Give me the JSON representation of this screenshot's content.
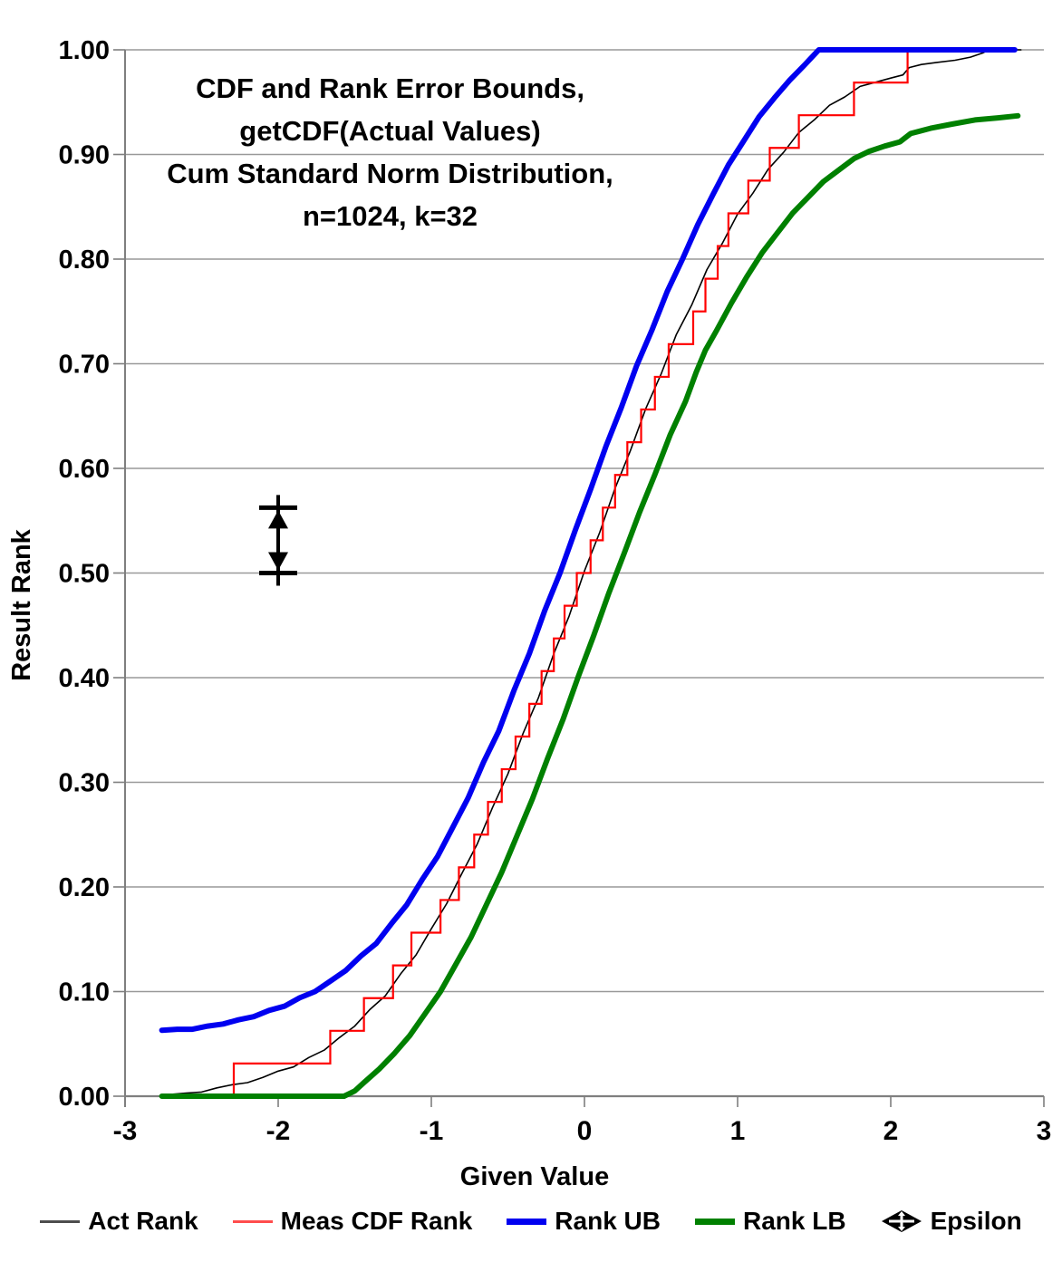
{
  "chart_data": {
    "type": "line",
    "title_lines": [
      "CDF and Rank Error Bounds,",
      "getCDF(Actual Values)",
      "Cum Standard Norm Distribution,",
      "n=1024, k=32"
    ],
    "xlabel": "Given Value",
    "ylabel": "Result Rank",
    "xlim": [
      -3,
      3
    ],
    "ylim": [
      0,
      1
    ],
    "grid": "horizontal",
    "legend_position": "bottom",
    "x_ticks": [
      {
        "v": -3,
        "label": "-3"
      },
      {
        "v": -2,
        "label": "-2"
      },
      {
        "v": -1,
        "label": "-1"
      },
      {
        "v": 0,
        "label": "0"
      },
      {
        "v": 1,
        "label": "1"
      },
      {
        "v": 2,
        "label": "2"
      },
      {
        "v": 3,
        "label": "3"
      }
    ],
    "y_ticks": [
      {
        "v": 0.0,
        "label": "0.00"
      },
      {
        "v": 0.1,
        "label": "0.10"
      },
      {
        "v": 0.2,
        "label": "0.20"
      },
      {
        "v": 0.3,
        "label": "0.30"
      },
      {
        "v": 0.4,
        "label": "0.40"
      },
      {
        "v": 0.5,
        "label": "0.50"
      },
      {
        "v": 0.6,
        "label": "0.60"
      },
      {
        "v": 0.7,
        "label": "0.70"
      },
      {
        "v": 0.8,
        "label": "0.80"
      },
      {
        "v": 0.9,
        "label": "0.90"
      },
      {
        "v": 1.0,
        "label": "1.00"
      }
    ],
    "series": [
      {
        "name": "Act Rank",
        "key": "act_rank",
        "type": "line",
        "color": "#000000",
        "width": 1.6,
        "points": [
          [
            -2.76,
            0.001
          ],
          [
            -2.6,
            0.003
          ],
          [
            -2.5,
            0.004
          ],
          [
            -2.4,
            0.008
          ],
          [
            -2.3,
            0.011
          ],
          [
            -2.2,
            0.013
          ],
          [
            -2.1,
            0.018
          ],
          [
            -2.0,
            0.024
          ],
          [
            -1.9,
            0.028
          ],
          [
            -1.8,
            0.037
          ],
          [
            -1.7,
            0.044
          ],
          [
            -1.6,
            0.056
          ],
          [
            -1.5,
            0.067
          ],
          [
            -1.4,
            0.083
          ],
          [
            -1.3,
            0.096
          ],
          [
            -1.2,
            0.117
          ],
          [
            -1.1,
            0.135
          ],
          [
            -1.0,
            0.16
          ],
          [
            -0.9,
            0.184
          ],
          [
            -0.8,
            0.213
          ],
          [
            -0.7,
            0.241
          ],
          [
            -0.6,
            0.276
          ],
          [
            -0.5,
            0.308
          ],
          [
            -0.4,
            0.347
          ],
          [
            -0.3,
            0.381
          ],
          [
            -0.2,
            0.423
          ],
          [
            -0.1,
            0.459
          ],
          [
            0.0,
            0.502
          ],
          [
            0.1,
            0.539
          ],
          [
            0.2,
            0.581
          ],
          [
            0.3,
            0.617
          ],
          [
            0.4,
            0.657
          ],
          [
            0.5,
            0.69
          ],
          [
            0.6,
            0.728
          ],
          [
            0.7,
            0.756
          ],
          [
            0.8,
            0.79
          ],
          [
            0.9,
            0.815
          ],
          [
            1.0,
            0.843
          ],
          [
            1.1,
            0.863
          ],
          [
            1.2,
            0.886
          ],
          [
            1.3,
            0.902
          ],
          [
            1.4,
            0.921
          ],
          [
            1.5,
            0.933
          ],
          [
            1.6,
            0.947
          ],
          [
            1.7,
            0.955
          ],
          [
            1.8,
            0.965
          ],
          [
            1.9,
            0.969
          ],
          [
            2.0,
            0.973
          ],
          [
            2.08,
            0.976
          ],
          [
            2.12,
            0.983
          ],
          [
            2.2,
            0.986
          ],
          [
            2.3,
            0.988
          ],
          [
            2.42,
            0.99
          ],
          [
            2.52,
            0.993
          ],
          [
            2.6,
            0.997
          ],
          [
            2.64,
            1.0
          ],
          [
            2.85,
            1.0
          ]
        ]
      },
      {
        "name": "Meas CDF Rank",
        "key": "meas_cdf_rank",
        "type": "staircase",
        "color": "#ff0000",
        "width": 2.2,
        "start_x": -2.55,
        "end_x": 2.81,
        "step_height": 0.03125,
        "steps": [
          [
            -2.29,
            0.03125
          ],
          [
            -1.66,
            0.0625
          ],
          [
            -1.44,
            0.09375
          ],
          [
            -1.25,
            0.125
          ],
          [
            -1.13,
            0.15625
          ],
          [
            -0.94,
            0.1875
          ],
          [
            -0.82,
            0.21875
          ],
          [
            -0.72,
            0.25
          ],
          [
            -0.63,
            0.28125
          ],
          [
            -0.54,
            0.3125
          ],
          [
            -0.45,
            0.34375
          ],
          [
            -0.36,
            0.375
          ],
          [
            -0.28,
            0.40625
          ],
          [
            -0.2,
            0.4375
          ],
          [
            -0.13,
            0.46875
          ],
          [
            -0.05,
            0.5
          ],
          [
            0.04,
            0.53125
          ],
          [
            0.12,
            0.5625
          ],
          [
            0.2,
            0.59375
          ],
          [
            0.28,
            0.625
          ],
          [
            0.37,
            0.65625
          ],
          [
            0.46,
            0.6875
          ],
          [
            0.55,
            0.71875
          ],
          [
            0.71,
            0.75
          ],
          [
            0.79,
            0.78125
          ],
          [
            0.87,
            0.8125
          ],
          [
            0.94,
            0.84375
          ],
          [
            1.07,
            0.875
          ],
          [
            1.21,
            0.90625
          ],
          [
            1.4,
            0.9375
          ],
          [
            1.76,
            0.96875
          ],
          [
            2.11,
            1.0
          ]
        ]
      },
      {
        "name": "Rank UB",
        "key": "rank_ub",
        "type": "line",
        "color": "#0000f0",
        "width": 6,
        "points": [
          [
            -2.76,
            0.063
          ],
          [
            -2.66,
            0.064
          ],
          [
            -2.56,
            0.064
          ],
          [
            -2.46,
            0.067
          ],
          [
            -2.36,
            0.069
          ],
          [
            -2.26,
            0.073
          ],
          [
            -2.16,
            0.076
          ],
          [
            -2.06,
            0.082
          ],
          [
            -1.96,
            0.086
          ],
          [
            -1.86,
            0.094
          ],
          [
            -1.76,
            0.1
          ],
          [
            -1.66,
            0.11
          ],
          [
            -1.56,
            0.12
          ],
          [
            -1.46,
            0.134
          ],
          [
            -1.36,
            0.146
          ],
          [
            -1.26,
            0.165
          ],
          [
            -1.16,
            0.183
          ],
          [
            -1.06,
            0.207
          ],
          [
            -0.96,
            0.229
          ],
          [
            -0.86,
            0.257
          ],
          [
            -0.76,
            0.285
          ],
          [
            -0.66,
            0.319
          ],
          [
            -0.56,
            0.349
          ],
          [
            -0.46,
            0.388
          ],
          [
            -0.36,
            0.423
          ],
          [
            -0.26,
            0.464
          ],
          [
            -0.16,
            0.5
          ],
          [
            -0.06,
            0.541
          ],
          [
            0.04,
            0.58
          ],
          [
            0.14,
            0.621
          ],
          [
            0.24,
            0.658
          ],
          [
            0.34,
            0.698
          ],
          [
            0.44,
            0.732
          ],
          [
            0.54,
            0.769
          ],
          [
            0.64,
            0.8
          ],
          [
            0.74,
            0.833
          ],
          [
            0.84,
            0.862
          ],
          [
            0.94,
            0.89
          ],
          [
            1.04,
            0.913
          ],
          [
            1.14,
            0.936
          ],
          [
            1.24,
            0.954
          ],
          [
            1.34,
            0.971
          ],
          [
            1.44,
            0.986
          ],
          [
            1.53,
            1.0
          ],
          [
            2.81,
            1.0
          ]
        ]
      },
      {
        "name": "Rank LB",
        "key": "rank_lb",
        "type": "line",
        "color": "#008000",
        "width": 6,
        "points": [
          [
            -2.76,
            0.0
          ],
          [
            -1.57,
            0.0
          ],
          [
            -1.5,
            0.005
          ],
          [
            -1.44,
            0.013
          ],
          [
            -1.34,
            0.026
          ],
          [
            -1.24,
            0.041
          ],
          [
            -1.14,
            0.058
          ],
          [
            -1.04,
            0.079
          ],
          [
            -0.94,
            0.1
          ],
          [
            -0.84,
            0.126
          ],
          [
            -0.74,
            0.152
          ],
          [
            -0.64,
            0.183
          ],
          [
            -0.54,
            0.214
          ],
          [
            -0.44,
            0.249
          ],
          [
            -0.34,
            0.284
          ],
          [
            -0.24,
            0.323
          ],
          [
            -0.14,
            0.36
          ],
          [
            -0.04,
            0.401
          ],
          [
            0.06,
            0.44
          ],
          [
            0.16,
            0.481
          ],
          [
            0.26,
            0.519
          ],
          [
            0.36,
            0.558
          ],
          [
            0.46,
            0.594
          ],
          [
            0.56,
            0.632
          ],
          [
            0.66,
            0.664
          ],
          [
            0.73,
            0.692
          ],
          [
            0.79,
            0.713
          ],
          [
            0.86,
            0.731
          ],
          [
            0.96,
            0.758
          ],
          [
            1.06,
            0.783
          ],
          [
            1.16,
            0.806
          ],
          [
            1.26,
            0.825
          ],
          [
            1.36,
            0.844
          ],
          [
            1.46,
            0.859
          ],
          [
            1.56,
            0.874
          ],
          [
            1.66,
            0.885
          ],
          [
            1.76,
            0.896
          ],
          [
            1.86,
            0.903
          ],
          [
            1.96,
            0.908
          ],
          [
            2.06,
            0.912
          ],
          [
            2.13,
            0.92
          ],
          [
            2.26,
            0.925
          ],
          [
            2.4,
            0.929
          ],
          [
            2.55,
            0.933
          ],
          [
            2.7,
            0.935
          ],
          [
            2.83,
            0.937
          ]
        ]
      }
    ],
    "epsilon_marker": {
      "x": -2,
      "y_bottom": 0.5,
      "y_top": 0.5625,
      "value": 0.0625,
      "color": "#000000"
    }
  },
  "legend": {
    "items": [
      {
        "label": "Act Rank",
        "series": "act_rank",
        "swatch": "line-thin",
        "color": "#4d4d4d"
      },
      {
        "label": "Meas CDF Rank",
        "series": "meas_cdf_rank",
        "swatch": "line-thin",
        "color": "#ff4d4d"
      },
      {
        "label": "Rank UB",
        "series": "rank_ub",
        "swatch": "line-thick",
        "color": "#0000f0"
      },
      {
        "label": "Rank LB",
        "series": "rank_lb",
        "swatch": "line-thick",
        "color": "#008000"
      },
      {
        "label": "Epsilon",
        "series": "epsilon",
        "swatch": "epsilon-glyph",
        "color": "#000000"
      }
    ]
  },
  "style": {
    "gridline_color": "#999999",
    "axis_color": "#7f7f7f",
    "background": "#ffffff"
  }
}
